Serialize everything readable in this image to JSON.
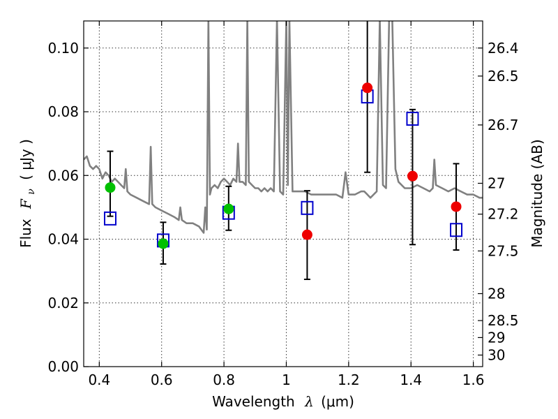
{
  "chart_data": {
    "type": "scatter",
    "xlabel": "Wavelength",
    "xlabel_symbol": "λ",
    "xlabel_unit": "(μm)",
    "ylabel": "Flux",
    "ylabel_symbol": "F",
    "ylabel_sub": "ν",
    "ylabel_unit": "( μJy )",
    "y2label": "Magnitude (AB)",
    "xlim": [
      0.35,
      1.63
    ],
    "ylim": [
      0.0,
      0.1085
    ],
    "grid": true,
    "x_ticks": [
      {
        "value": 0.4,
        "label": "0.4"
      },
      {
        "value": 0.6,
        "label": "0.6"
      },
      {
        "value": 0.8,
        "label": "0.8"
      },
      {
        "value": 1.0,
        "label": "1"
      },
      {
        "value": 1.2,
        "label": "1.2"
      },
      {
        "value": 1.4,
        "label": "1.4"
      },
      {
        "value": 1.6,
        "label": "1.6"
      }
    ],
    "y_ticks": [
      {
        "value": 0.0,
        "label": "0.00"
      },
      {
        "value": 0.02,
        "label": "0.02"
      },
      {
        "value": 0.04,
        "label": "0.04"
      },
      {
        "value": 0.06,
        "label": "0.06"
      },
      {
        "value": 0.08,
        "label": "0.08"
      },
      {
        "value": 0.1,
        "label": "0.10"
      }
    ],
    "y2_ticks": [
      {
        "value": 26.4,
        "label": "26.4"
      },
      {
        "value": 26.5,
        "label": "26.5"
      },
      {
        "value": 26.7,
        "label": "26.7"
      },
      {
        "value": 27.0,
        "label": "27"
      },
      {
        "value": 27.2,
        "label": "27.2"
      },
      {
        "value": 27.5,
        "label": "27.5"
      },
      {
        "value": 28.0,
        "label": "28"
      },
      {
        "value": 28.5,
        "label": "28.5"
      },
      {
        "value": 29.0,
        "label": "29"
      },
      {
        "value": 30.0,
        "label": "30"
      }
    ],
    "colors": {
      "model": "#808080",
      "green": "#00c000",
      "red": "#ee0000",
      "square": "#0000cc",
      "errorbar": "#000000"
    },
    "model_spectrum": {
      "x": [
        0.35,
        0.36,
        0.37,
        0.38,
        0.39,
        0.4,
        0.41,
        0.42,
        0.43,
        0.44,
        0.45,
        0.46,
        0.47,
        0.48,
        0.485,
        0.49,
        0.5,
        0.52,
        0.54,
        0.56,
        0.565,
        0.57,
        0.58,
        0.6,
        0.62,
        0.64,
        0.655,
        0.66,
        0.665,
        0.68,
        0.7,
        0.72,
        0.735,
        0.74,
        0.745,
        0.75,
        0.755,
        0.76,
        0.77,
        0.78,
        0.79,
        0.8,
        0.81,
        0.82,
        0.83,
        0.84,
        0.845,
        0.85,
        0.86,
        0.87,
        0.875,
        0.88,
        0.89,
        0.9,
        0.91,
        0.92,
        0.93,
        0.94,
        0.95,
        0.96,
        0.97,
        0.98,
        0.99,
        1.0,
        1.005,
        1.01,
        1.02,
        1.04,
        1.06,
        1.08,
        1.1,
        1.12,
        1.14,
        1.16,
        1.18,
        1.19,
        1.2,
        1.22,
        1.24,
        1.25,
        1.26,
        1.27,
        1.28,
        1.29,
        1.3,
        1.31,
        1.32,
        1.33,
        1.34,
        1.35,
        1.36,
        1.38,
        1.4,
        1.42,
        1.44,
        1.46,
        1.47,
        1.475,
        1.48,
        1.5,
        1.52,
        1.54,
        1.56,
        1.58,
        1.6,
        1.62,
        1.63
      ],
      "y": [
        0.065,
        0.066,
        0.063,
        0.062,
        0.063,
        0.062,
        0.059,
        0.061,
        0.06,
        0.058,
        0.059,
        0.058,
        0.057,
        0.056,
        0.062,
        0.055,
        0.054,
        0.053,
        0.052,
        0.051,
        0.069,
        0.051,
        0.05,
        0.049,
        0.048,
        0.047,
        0.046,
        0.05,
        0.046,
        0.045,
        0.045,
        0.044,
        0.042,
        0.05,
        0.043,
        0.109,
        0.054,
        0.056,
        0.057,
        0.056,
        0.058,
        0.059,
        0.058,
        0.057,
        0.059,
        0.058,
        0.07,
        0.058,
        0.058,
        0.057,
        0.109,
        0.058,
        0.057,
        0.056,
        0.056,
        0.055,
        0.056,
        0.055,
        0.056,
        0.055,
        0.109,
        0.055,
        0.054,
        0.109,
        0.057,
        0.109,
        0.055,
        0.055,
        0.055,
        0.054,
        0.054,
        0.054,
        0.054,
        0.054,
        0.053,
        0.061,
        0.054,
        0.054,
        0.055,
        0.055,
        0.054,
        0.053,
        0.054,
        0.055,
        0.109,
        0.057,
        0.056,
        0.109,
        0.109,
        0.062,
        0.058,
        0.056,
        0.056,
        0.057,
        0.056,
        0.055,
        0.056,
        0.065,
        0.057,
        0.056,
        0.055,
        0.056,
        0.055,
        0.054,
        0.054,
        0.053,
        0.053
      ]
    },
    "series": [
      {
        "marker": "circle-green",
        "points": [
          {
            "x": 0.435,
            "y": 0.0562,
            "yerr_low": 0.0472,
            "yerr_high": 0.0676
          },
          {
            "x": 0.605,
            "y": 0.0386,
            "yerr_low": 0.0322,
            "yerr_high": 0.0453
          },
          {
            "x": 0.815,
            "y": 0.0495,
            "yerr_low": 0.0428,
            "yerr_high": 0.0566
          }
        ]
      },
      {
        "marker": "circle-red",
        "points": [
          {
            "x": 1.067,
            "y": 0.0414,
            "yerr_low": 0.0274,
            "yerr_high": 0.0552
          },
          {
            "x": 1.26,
            "y": 0.0875,
            "yerr_low": 0.061,
            "yerr_high": 0.1085
          },
          {
            "x": 1.405,
            "y": 0.0598,
            "yerr_low": 0.0383,
            "yerr_high": 0.0807
          },
          {
            "x": 1.545,
            "y": 0.0502,
            "yerr_low": 0.0366,
            "yerr_high": 0.0637
          }
        ]
      },
      {
        "marker": "square-blue",
        "points": [
          {
            "x": 0.435,
            "y": 0.0465
          },
          {
            "x": 0.605,
            "y": 0.0396
          },
          {
            "x": 0.815,
            "y": 0.0483
          },
          {
            "x": 1.067,
            "y": 0.0498
          },
          {
            "x": 1.26,
            "y": 0.0848
          },
          {
            "x": 1.405,
            "y": 0.0778
          },
          {
            "x": 1.545,
            "y": 0.0429
          }
        ]
      }
    ]
  }
}
